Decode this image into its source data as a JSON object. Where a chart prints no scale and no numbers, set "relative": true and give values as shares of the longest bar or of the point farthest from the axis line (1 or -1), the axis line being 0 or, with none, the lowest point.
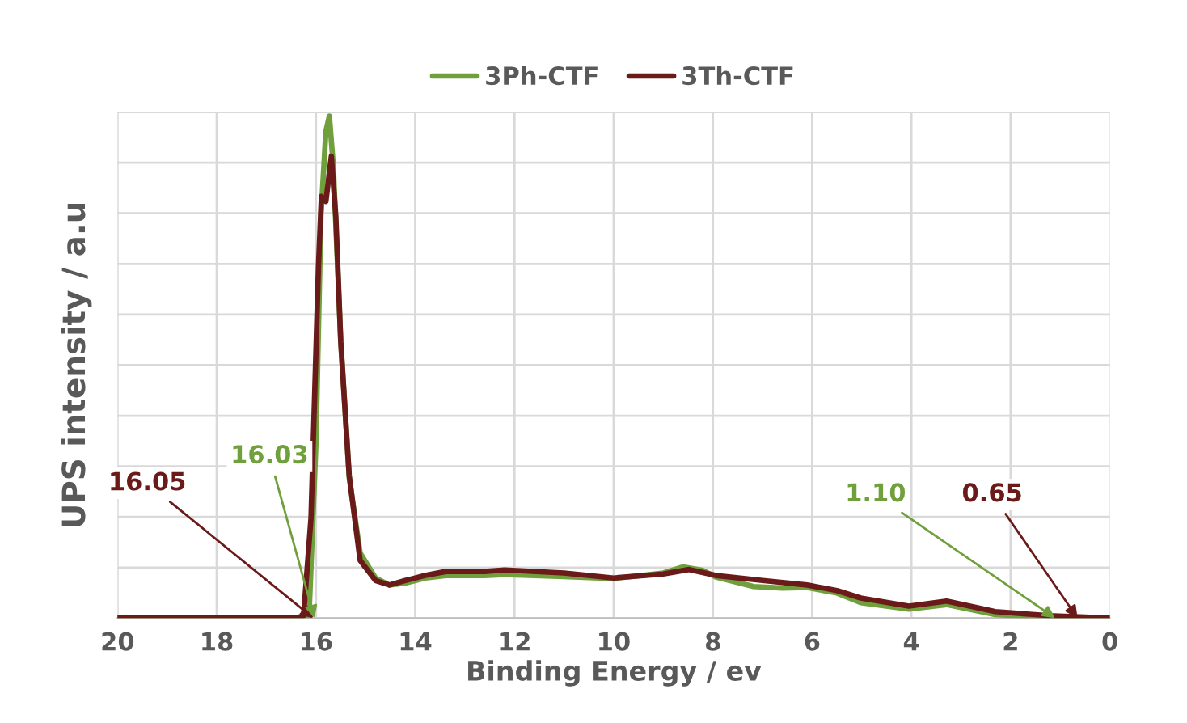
{
  "chart_data": {
    "type": "line",
    "relative": true,
    "xlabel": "Binding Energy / ev",
    "ylabel": "UPS intensity / a.u",
    "xlim": [
      20,
      0
    ],
    "xticks": [
      20,
      18,
      16,
      14,
      12,
      10,
      8,
      6,
      4,
      2,
      0
    ],
    "grid": true,
    "legend": "top",
    "marker": "none",
    "line_style": "solid",
    "series": [
      {
        "name": "3Ph-CTF",
        "color": "#70a03c",
        "x": [
          20,
          16.3,
          16.14,
          16.0,
          15.9,
          15.8,
          15.73,
          15.65,
          15.5,
          15.33,
          15.11,
          14.8,
          14.52,
          14.2,
          13.8,
          13.38,
          12.6,
          12.2,
          11,
          10,
          9,
          8.6,
          8.2,
          7.94,
          7.18,
          6.6,
          6.1,
          5.5,
          5.02,
          4.05,
          3.29,
          2.31,
          1.23,
          0.5,
          0
        ],
        "values": [
          0,
          0,
          0.005,
          0.35,
          0.8,
          0.97,
          1.0,
          0.9,
          0.55,
          0.28,
          0.13,
          0.08,
          0.066,
          0.07,
          0.08,
          0.085,
          0.085,
          0.087,
          0.083,
          0.079,
          0.09,
          0.102,
          0.095,
          0.082,
          0.063,
          0.06,
          0.061,
          0.05,
          0.031,
          0.018,
          0.027,
          0.007,
          0.002,
          0.001,
          0
        ]
      },
      {
        "name": "3Th-CTF",
        "color": "#6b1a1a",
        "x": [
          20,
          16.4,
          16.25,
          16.1,
          15.95,
          15.89,
          15.8,
          15.69,
          15.6,
          15.5,
          15.33,
          15.11,
          14.8,
          14.52,
          14.2,
          13.8,
          13.38,
          12.6,
          12.2,
          11,
          10,
          9,
          8.48,
          7.94,
          7,
          6.1,
          5.5,
          5.02,
          4.05,
          3.29,
          2.31,
          1.23,
          0.5,
          0
        ],
        "values": [
          0,
          0,
          0.005,
          0.2,
          0.7,
          0.84,
          0.83,
          0.92,
          0.8,
          0.55,
          0.284,
          0.115,
          0.075,
          0.066,
          0.075,
          0.085,
          0.093,
          0.093,
          0.096,
          0.09,
          0.08,
          0.088,
          0.097,
          0.085,
          0.075,
          0.066,
          0.055,
          0.04,
          0.024,
          0.034,
          0.013,
          0.005,
          0.002,
          0
        ]
      }
    ],
    "annotations": [
      {
        "text": "16.05",
        "x": 16.05,
        "y": 0
      },
      {
        "text": "16.03",
        "x": 16.03,
        "y": 0
      },
      {
        "text": "1.10",
        "x": 1.1,
        "y": 0
      },
      {
        "text": "0.65",
        "x": 0.65,
        "y": 0
      }
    ]
  }
}
